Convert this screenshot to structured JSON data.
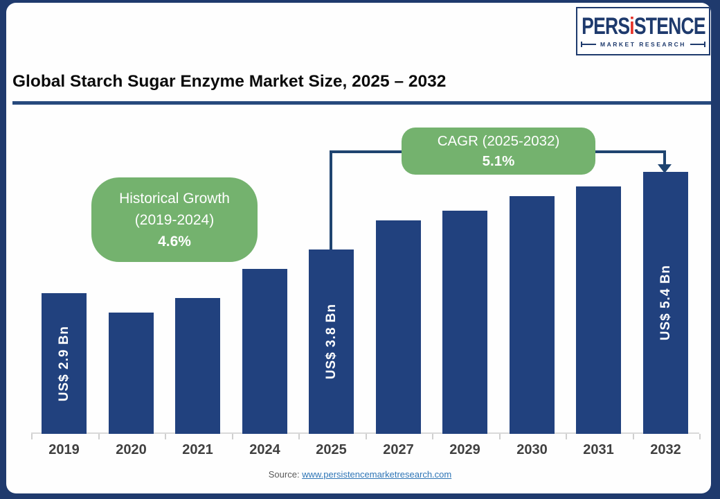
{
  "colors": {
    "bar": "#21417E",
    "accent_green": "#74B26E",
    "frame": "#1F3A6D",
    "connector": "#1F4470",
    "title_underline": "#274A7D",
    "axis_line": "#D9D9D9",
    "year_label": "#404040",
    "link": "#2E75B6",
    "logo_red": "#E63329",
    "logo_navy": "#1E3A6D"
  },
  "logo": {
    "brand_pre": "PERS",
    "brand_i": "i",
    "brand_post": "STENCE",
    "subtitle": "MARKET RESEARCH"
  },
  "header": {
    "title": "Global Starch Sugar Enzyme Market Size, 2025 – 2032"
  },
  "callouts": {
    "historical": {
      "line1": "Historical Growth",
      "line2": "(2019-2024)",
      "value": "4.6%"
    },
    "cagr": {
      "line1": "CAGR (2025-2032)",
      "value": "5.1%"
    }
  },
  "chart_data": {
    "type": "bar",
    "title": "Global Starch Sugar Enzyme Market Size, 2025 – 2032",
    "unit": "US$ Bn",
    "categories": [
      "2019",
      "2020",
      "2021",
      "2024",
      "2025",
      "2027",
      "2029",
      "2030",
      "2031",
      "2032"
    ],
    "values": [
      2.9,
      2.5,
      2.8,
      3.4,
      3.8,
      4.4,
      4.6,
      4.9,
      5.1,
      5.4
    ],
    "labeled_bars": [
      {
        "category": "2019",
        "label": "US$ 2.9 Bn"
      },
      {
        "category": "2025",
        "label": "US$ 3.8 Bn"
      },
      {
        "category": "2032",
        "label": "US$ 5.4 Bn"
      }
    ],
    "ylim": [
      0,
      5.8
    ],
    "grid": false,
    "legend": false
  },
  "footer": {
    "source_label": "Source:",
    "source_link": "www.persistencemarketresearch.com"
  }
}
